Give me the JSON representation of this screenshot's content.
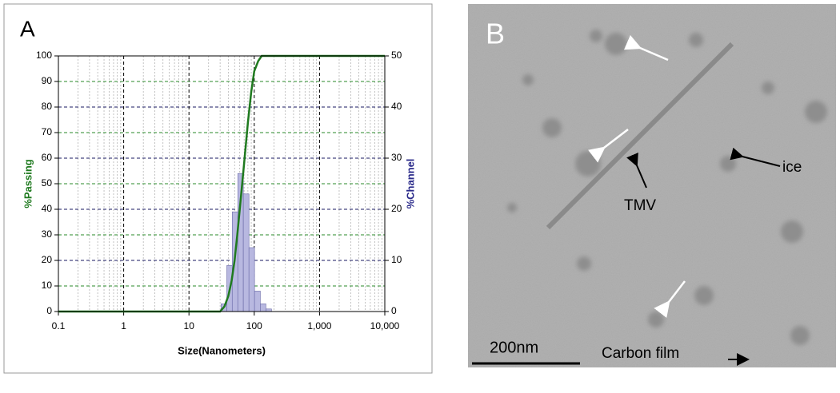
{
  "chart_data": {
    "type": "combo",
    "panel_label": "A",
    "xlabel": "Size(Nanometers)",
    "ylabel": "%Passing",
    "y2label": "%Channel",
    "xscale": "log",
    "xlim": [
      0.1,
      10000
    ],
    "xticks": [
      0.1,
      1,
      10,
      100,
      {
        "value": 1000,
        "label": "1,000"
      },
      {
        "value": 10000,
        "label": "10,000"
      }
    ],
    "ylim": [
      0,
      100
    ],
    "yticks": [
      0,
      10,
      20,
      30,
      40,
      50,
      60,
      70,
      80,
      90,
      100
    ],
    "y2lim": [
      0,
      50
    ],
    "y2ticks": [
      0,
      10,
      20,
      30,
      40,
      50
    ],
    "grid": true,
    "series": [
      {
        "type": "line",
        "color": "#1f7a1f",
        "x": [
          0.1,
          30,
          35,
          40,
          45,
          50,
          55,
          60,
          70,
          80,
          90,
          100,
          115,
          130,
          10000
        ],
        "values": [
          0,
          0,
          2,
          6,
          12,
          20,
          30,
          40,
          58,
          74,
          86,
          94,
          98,
          100,
          100
        ]
      },
      {
        "type": "histogram",
        "axis": "y2",
        "color": "#b8b8e0",
        "bins": [
          31,
          38,
          46,
          56,
          68,
          83,
          101,
          124,
          151,
          184
        ],
        "values": [
          1.5,
          9,
          19.5,
          27,
          23,
          12.5,
          4,
          1.5,
          0.5
        ]
      }
    ]
  },
  "image_panel": {
    "label": "B",
    "annotations": {
      "ice": "ice",
      "tmv": "TMV",
      "scale": "200nm",
      "film": "Carbon film"
    }
  }
}
